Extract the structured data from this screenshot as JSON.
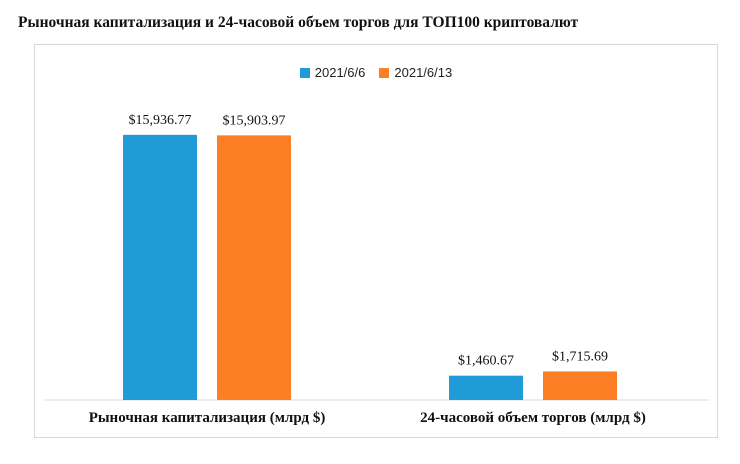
{
  "title": "Рыночная капитализация и 24-часовой объем торгов для ТОП100 криптовалют",
  "chart_data": {
    "type": "bar",
    "title": "Рыночная капитализация и 24-часовой объем торгов для ТОП100 криптовалют",
    "categories": [
      "Рыночная капитализация (млрд $)",
      "24-часовой объем торгов (млрд $)"
    ],
    "series": [
      {
        "name": "2021/6/6",
        "color": "#1f9bd7",
        "values": [
          15936.77,
          1460.67
        ],
        "labels": [
          "$15,936.77",
          "$1,460.67"
        ]
      },
      {
        "name": "2021/6/13",
        "color": "#fd7f25",
        "values": [
          15903.97,
          1715.69
        ],
        "labels": [
          "$15,903.97",
          "$1,715.69"
        ]
      }
    ],
    "ylim": [
      0,
      16500
    ],
    "grid": false,
    "legend": "top-center"
  }
}
